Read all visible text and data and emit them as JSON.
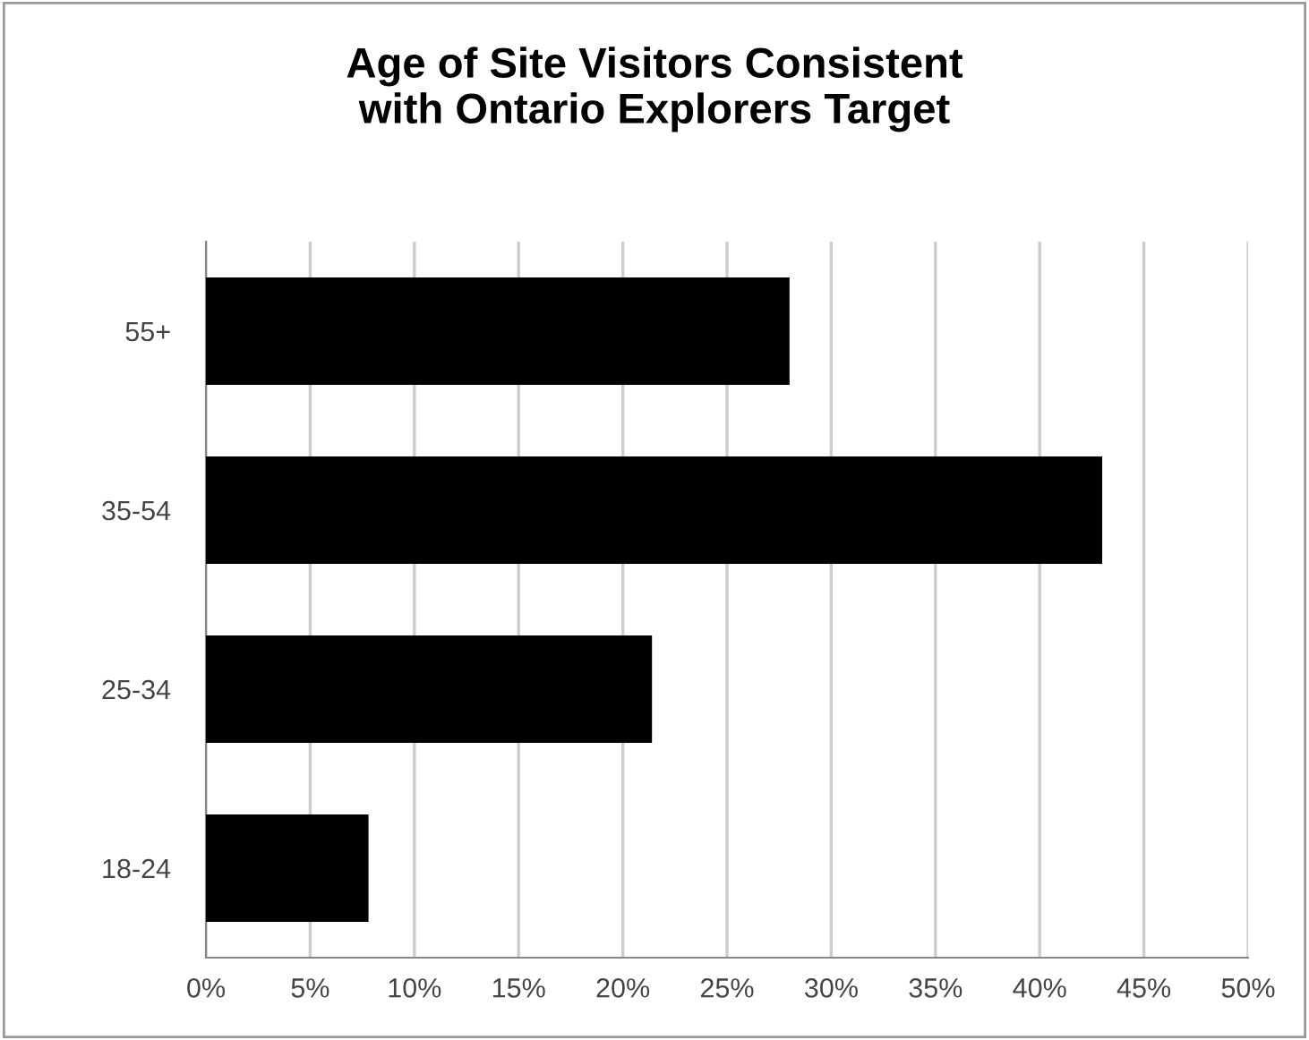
{
  "chart_data": {
    "type": "bar",
    "orientation": "horizontal",
    "title": "Age of Site Visitors Consistent\nwith Ontario Explorers Target",
    "categories": [
      "55+",
      "35-54",
      "25-34",
      "18-24"
    ],
    "values": [
      28.0,
      43.0,
      21.4,
      7.8
    ],
    "color": "#000000",
    "xlim": [
      0,
      50
    ],
    "xticks": [
      {
        "value": 0,
        "label": "0%"
      },
      {
        "value": 5,
        "label": "5%"
      },
      {
        "value": 10,
        "label": "10%"
      },
      {
        "value": 15,
        "label": "15%"
      },
      {
        "value": 20,
        "label": "20%"
      },
      {
        "value": 25,
        "label": "25%"
      },
      {
        "value": 30,
        "label": "30%"
      },
      {
        "value": 35,
        "label": "35%"
      },
      {
        "value": 40,
        "label": "40%"
      },
      {
        "value": 45,
        "label": "45%"
      },
      {
        "value": 50,
        "label": "50%"
      }
    ],
    "grid": "x"
  }
}
